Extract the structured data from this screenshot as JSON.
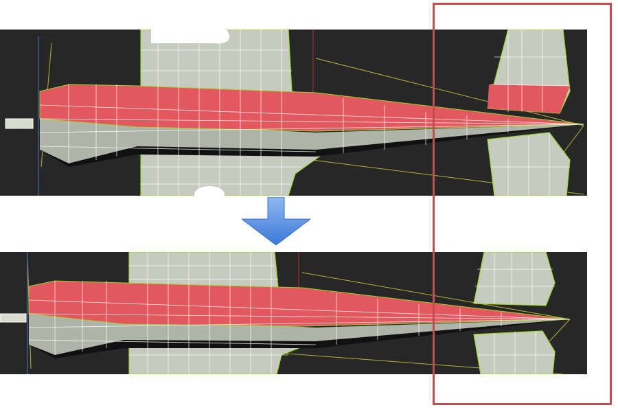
{
  "figure": {
    "panels": [
      {
        "id": "before",
        "state": "fin-polygons-selected-overlapping-wing"
      },
      {
        "id": "after",
        "state": "fin-polygons-moved-aligned"
      }
    ],
    "arrow_icon": "down-arrow-icon",
    "highlight_region": "tail-fin-comparison"
  },
  "colors": {
    "viewport_bg": "#272727",
    "mesh_gray": "#c7cbbf",
    "selection_red": "#e2585e",
    "wire_white": "#ffffff",
    "edge_green": "#9bd62b",
    "guide_yellow": "#b9b13a",
    "arrow_blue": "#4f8fe6",
    "highlight_red": "#c0504d"
  }
}
